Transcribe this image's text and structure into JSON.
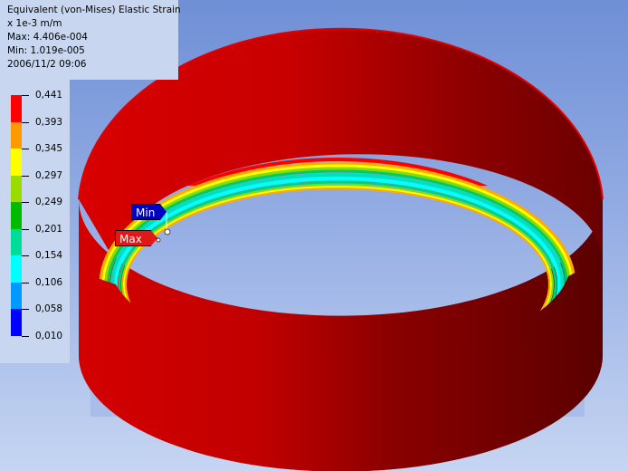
{
  "result_info": {
    "title": "Equivalent (von-Mises) Elastic Strain",
    "unit": "x 1e-3 m/m",
    "max_line": "Max: 4.406e-004",
    "min_line": "Min: 1.019e-005",
    "timestamp": "2006/11/2 09:06"
  },
  "legend": {
    "bands": [
      {
        "label": "0,441",
        "color": "#ff0000"
      },
      {
        "label": "0,393",
        "color": "#ff9900"
      },
      {
        "label": "0,345",
        "color": "#ffff00"
      },
      {
        "label": "0,297",
        "color": "#99dd00"
      },
      {
        "label": "0,249",
        "color": "#00bb00"
      },
      {
        "label": "0,201",
        "color": "#00dd99"
      },
      {
        "label": "0,154",
        "color": "#00ffff"
      },
      {
        "label": "0,106",
        "color": "#0099ff"
      },
      {
        "label": "0,058",
        "color": "#0000ff"
      },
      {
        "label": "0,010",
        "color": null
      }
    ]
  },
  "probes": {
    "min_label": "Min",
    "max_label": "Max"
  },
  "colors": {
    "shell_outer_light": "#e00000",
    "shell_outer_dark": "#5a0000",
    "inner_band_colors": [
      "#ff0000",
      "#ffaa00",
      "#ffff00",
      "#88dd00",
      "#00cc66",
      "#00e0c0",
      "#00ffff"
    ]
  }
}
